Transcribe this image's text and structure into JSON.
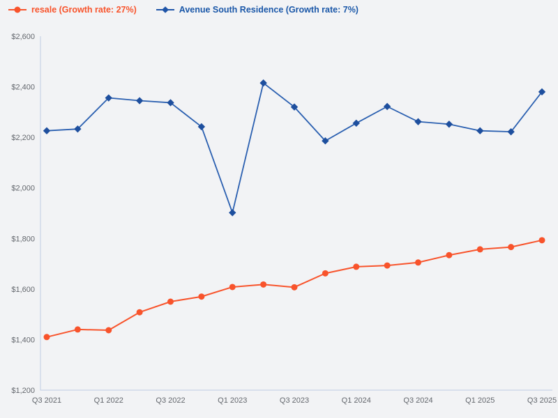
{
  "page": {
    "background_color": "#f2f3f5",
    "axis_color": "#c9d3e6",
    "tick_label_color": "#63676d"
  },
  "legend": {
    "position": "top-left",
    "items": [
      {
        "label": "resale (Growth rate: 27%)",
        "marker": "circle",
        "color": "#f8532b",
        "text_color": "#f8532b"
      },
      {
        "label": "Avenue South Residence (Growth rate: 7%)",
        "marker": "diamond",
        "color": "#1f55a8",
        "text_color": "#1a57a8"
      }
    ]
  },
  "chart_data": {
    "type": "line",
    "title": "",
    "xlabel": "",
    "ylabel": "",
    "grid": false,
    "legend_position": "top-left",
    "ylim": [
      1200,
      2600
    ],
    "y_tick_step": 200,
    "y_tick_prefix": "$",
    "x_tick_interval": 2,
    "x_tick_labels": [
      "Q3 2021",
      "Q1 2022",
      "Q3 2022",
      "Q1 2023",
      "Q3 2023",
      "Q1 2024",
      "Q3 2024",
      "Q1 2025",
      "Q3 2025"
    ],
    "categories": [
      "Q3 2021",
      "Q4 2021",
      "Q1 2022",
      "Q2 2022",
      "Q3 2022",
      "Q4 2022",
      "Q1 2023",
      "Q2 2023",
      "Q3 2023",
      "Q4 2023",
      "Q1 2024",
      "Q2 2024",
      "Q3 2024",
      "Q4 2024",
      "Q1 2025",
      "Q2 2025",
      "Q3 2025"
    ],
    "series": [
      {
        "name": "resale",
        "legend_label": "resale (Growth rate: 27%)",
        "growth_rate": "27%",
        "color": "#f8532b",
        "marker_color": "#f8532b",
        "marker": "circle",
        "values": [
          1410,
          1440,
          1437,
          1508,
          1550,
          1570,
          1608,
          1618,
          1607,
          1662,
          1688,
          1693,
          1705,
          1734,
          1757,
          1766,
          1793
        ]
      },
      {
        "name": "Avenue South Residence",
        "legend_label": "Avenue South Residence (Growth rate: 7%)",
        "growth_rate": "7%",
        "color": "#2a5fb0",
        "marker_color": "#1e4f9e",
        "marker": "diamond",
        "values": [
          2226,
          2233,
          2356,
          2345,
          2337,
          2242,
          1902,
          2415,
          2320,
          2186,
          2256,
          2322,
          2262,
          2252,
          2226,
          2222,
          2380
        ]
      }
    ]
  }
}
